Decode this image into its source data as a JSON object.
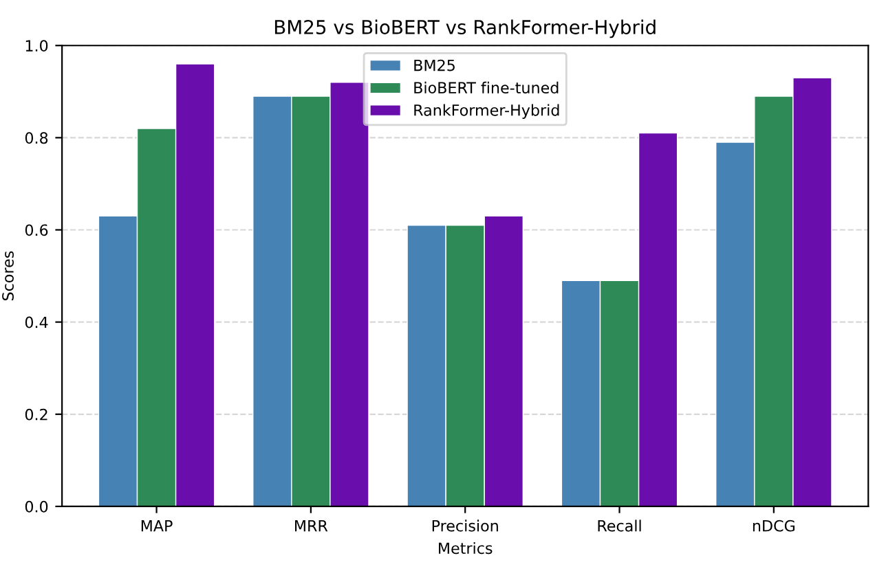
{
  "chart_data": {
    "type": "bar",
    "title": "BM25 vs BioBERT vs RankFormer-Hybrid",
    "xlabel": "Metrics",
    "ylabel": "Scores",
    "categories": [
      "MAP",
      "MRR",
      "Precision",
      "Recall",
      "nDCG"
    ],
    "series": [
      {
        "name": "BM25",
        "color": "#4682b4",
        "values": [
          0.63,
          0.89,
          0.61,
          0.49,
          0.79
        ]
      },
      {
        "name": "BioBERT fine-tuned",
        "color": "#2e8b57",
        "values": [
          0.82,
          0.89,
          0.61,
          0.49,
          0.89
        ]
      },
      {
        "name": "RankFormer-Hybrid",
        "color": "#6a0dad",
        "values": [
          0.96,
          0.92,
          0.63,
          0.81,
          0.93
        ]
      }
    ],
    "ylim": [
      0,
      1.0
    ],
    "yticks": [
      {
        "value": 0,
        "label": "0.0"
      },
      0.2,
      0.4,
      0.6,
      0.8,
      {
        "value": 1,
        "label": "1.0"
      }
    ],
    "grid": "y",
    "legend": "top"
  }
}
